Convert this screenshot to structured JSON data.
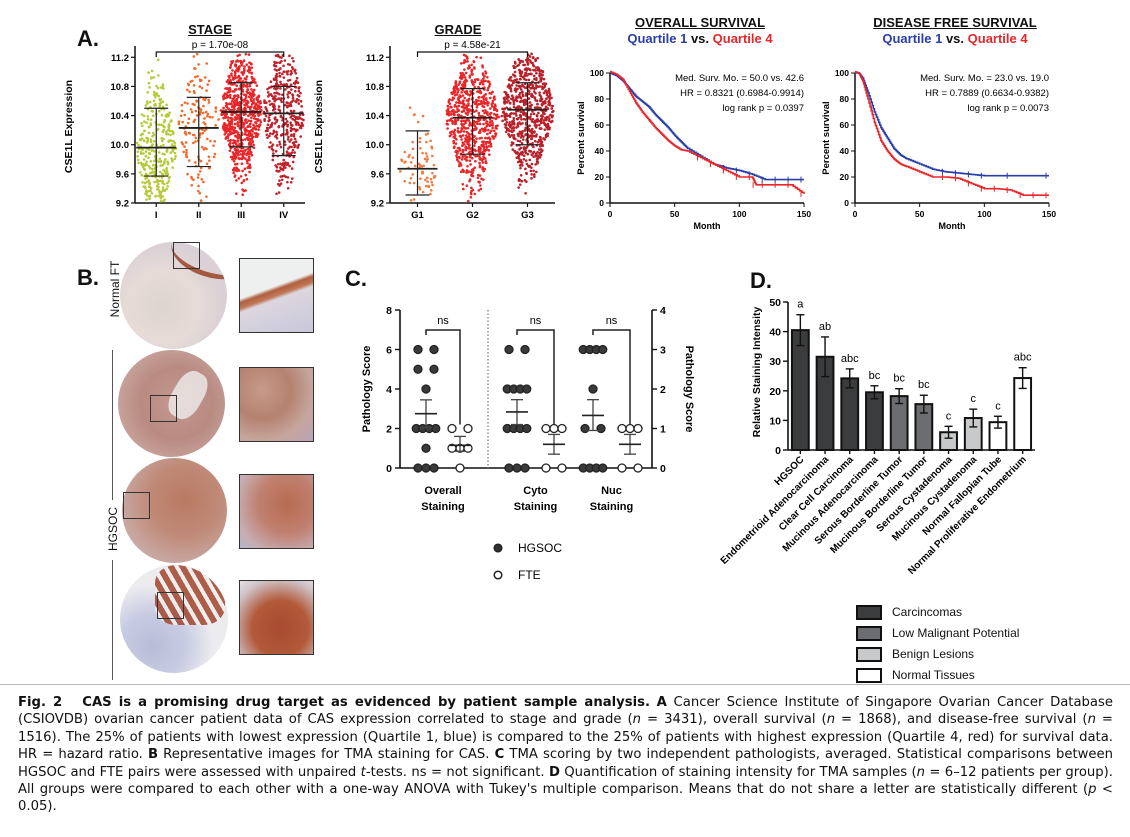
{
  "figure": {
    "panel_labels": {
      "a": "A.",
      "b": "B.",
      "c": "C.",
      "d": "D."
    },
    "caption": {
      "fig_label": "Fig. 2",
      "title": "CAS is a promising drug target as evidenced by patient sample analysis.",
      "part_a_label": "A",
      "part_a_text_1": "Cancer Science Institute of Singapore Ovarian Cancer Database (CSIOVDB) ovarian cancer patient data of CAS expression correlated to stage and grade (",
      "n1": "n",
      "part_a_text_2": " = 3431), overall survival (",
      "n2": "n",
      "part_a_text_3": " = 1868), and disease-free survival (",
      "n3": "n",
      "part_a_text_4": " = 1516). The 25% of patients with lowest expression (Quartile 1, blue) is compared to the 25% of patients with highest expression (Quartile 4, red) for survival data. HR = hazard ratio. ",
      "part_b_label": "B",
      "part_b_text": " Representative images for TMA staining for CAS. ",
      "part_c_label": "C",
      "part_c_text_1": " TMA scoring by two independent pathologists, averaged. Statistical comparisons between HGSOC and FTE pairs were assessed with unpaired ",
      "t": "t",
      "part_c_text_2": "-tests. ns = not significant. ",
      "part_d_label": "D",
      "part_d_text_1": " Quantification of staining intensity for TMA samples (",
      "n4": "n",
      "part_d_text_2": " = 6–12 patients per group). All groups were compared to each other with a one-way ANOVA with Tukey's multiple comparison. Means that do not share a letter are statistically different (",
      "p": "p",
      "part_d_text_3": " < 0.05)."
    },
    "panel_b": {
      "row_labels": [
        "Normal FT",
        "HGSOC"
      ]
    }
  },
  "chart_data": [
    {
      "id": "stage",
      "type": "scatter",
      "title": "STAGE",
      "ylabel": "CSE1L Expression",
      "xlabel": "",
      "categories": [
        "I",
        "II",
        "III",
        "IV"
      ],
      "ylim": [
        9.2,
        11.3
      ],
      "yticks": [
        "9.2",
        "9.6",
        "10.0",
        "10.4",
        "10.8",
        "11.2"
      ],
      "annotation": "p = 1.70e-08",
      "colors": [
        "#b8c93a",
        "#f06a2a",
        "#e8262a",
        "#c0202a"
      ],
      "series": [
        {
          "name": "I",
          "mean": 9.96,
          "sd_low": 9.57,
          "sd_high": 10.5,
          "n_approx": 350
        },
        {
          "name": "II",
          "mean": 10.23,
          "sd_low": 9.7,
          "sd_high": 10.65,
          "n_approx": 150
        },
        {
          "name": "III",
          "mean": 10.45,
          "sd_low": 9.97,
          "sd_high": 10.85,
          "n_approx": 2000
        },
        {
          "name": "IV",
          "mean": 10.43,
          "sd_low": 9.85,
          "sd_high": 10.8,
          "n_approx": 400
        }
      ]
    },
    {
      "id": "grade",
      "type": "scatter",
      "title": "GRADE",
      "ylabel": "CSE1L Expression",
      "xlabel": "",
      "categories": [
        "G1",
        "G2",
        "G3"
      ],
      "ylim": [
        9.2,
        11.3
      ],
      "yticks": [
        "9.2",
        "9.6",
        "10.0",
        "10.4",
        "10.8",
        "11.2"
      ],
      "annotation": "p = 4.58e-21",
      "colors": [
        "#f07a40",
        "#e8262a",
        "#b8202a"
      ],
      "series": [
        {
          "name": "G1",
          "mean": 9.67,
          "sd_low": 9.31,
          "sd_high": 10.19,
          "n_approx": 80
        },
        {
          "name": "G2",
          "mean": 10.37,
          "sd_low": 9.87,
          "sd_high": 10.77,
          "n_approx": 700
        },
        {
          "name": "G3",
          "mean": 10.48,
          "sd_low": 10.0,
          "sd_high": 10.85,
          "n_approx": 2000
        }
      ]
    },
    {
      "id": "overall-survival",
      "type": "line",
      "title": "OVERALL SURVIVAL",
      "subtitle": {
        "q1": "Quartile 1",
        "vs": " vs. ",
        "q4": "Quartile 4"
      },
      "xlabel": "Month",
      "ylabel": "Percent survival",
      "xlim": [
        0,
        150
      ],
      "ylim": [
        0,
        100
      ],
      "xticks": [
        "0",
        "50",
        "100",
        "150"
      ],
      "yticks": [
        "0",
        "20",
        "40",
        "60",
        "80",
        "100"
      ],
      "annotations": [
        "Med. Surv. Mo. = 50.0 vs. 42.6",
        "HR = 0.8321 (0.6984-0.9914)",
        "log rank p = 0.0397"
      ],
      "series": [
        {
          "name": "Quartile 1",
          "color": "#2a3ea8",
          "x": [
            0,
            5,
            10,
            15,
            20,
            25,
            30,
            35,
            40,
            45,
            50,
            55,
            60,
            70,
            80,
            90,
            100,
            110,
            120,
            130,
            140,
            150
          ],
          "y": [
            100,
            98,
            94,
            88,
            82,
            78,
            74,
            68,
            63,
            58,
            52,
            47,
            42,
            36,
            30,
            27,
            25,
            22,
            18,
            18,
            18,
            18
          ]
        },
        {
          "name": "Quartile 4",
          "color": "#e8262a",
          "x": [
            0,
            5,
            10,
            15,
            20,
            25,
            30,
            35,
            40,
            45,
            50,
            55,
            60,
            70,
            80,
            90,
            100,
            110,
            113,
            120,
            130,
            140,
            150
          ],
          "y": [
            101,
            99,
            95,
            86,
            77,
            70,
            64,
            58,
            53,
            48,
            44,
            41,
            40,
            35,
            30,
            25,
            20,
            20,
            14,
            14,
            14,
            14,
            7
          ]
        }
      ]
    },
    {
      "id": "disease-free-survival",
      "type": "line",
      "title": "DISEASE FREE SURVIVAL",
      "subtitle": {
        "q1": "Quartile 1",
        "vs": " vs. ",
        "q4": "Quartile 4"
      },
      "xlabel": "Month",
      "ylabel": "Percent survival",
      "xlim": [
        0,
        150
      ],
      "ylim": [
        0,
        100
      ],
      "xticks": [
        "0",
        "50",
        "100",
        "150"
      ],
      "yticks": [
        "0",
        "20",
        "40",
        "60",
        "80",
        "100"
      ],
      "annotations": [
        "Med. Surv. Mo. = 23.0 vs. 19.0",
        "HR = 0.7889 (0.6634-0.9382)",
        "log rank p = 0.0073"
      ],
      "series": [
        {
          "name": "Quartile 1",
          "color": "#2a3ea8",
          "x": [
            0,
            3,
            6,
            10,
            15,
            20,
            25,
            30,
            35,
            40,
            50,
            60,
            70,
            80,
            90,
            100,
            120,
            150
          ],
          "y": [
            100,
            100,
            96,
            85,
            70,
            58,
            50,
            42,
            37,
            34,
            30,
            26,
            24,
            23,
            22,
            21,
            21,
            21
          ]
        },
        {
          "name": "Quartile 4",
          "color": "#e8262a",
          "x": [
            0,
            3,
            6,
            10,
            15,
            20,
            25,
            30,
            35,
            40,
            50,
            60,
            70,
            80,
            90,
            100,
            110,
            120,
            130,
            140,
            150
          ],
          "y": [
            101,
            100,
            94,
            80,
            62,
            48,
            40,
            34,
            30,
            28,
            24,
            20,
            20,
            19,
            15,
            11,
            11,
            10,
            6,
            6,
            6
          ]
        }
      ]
    },
    {
      "id": "pathology-score",
      "type": "scatter",
      "title": "",
      "ylabel": "Pathology Score",
      "ylabel_right": "Pathology Score",
      "ylim": [
        0,
        8
      ],
      "ylim_right": [
        0,
        4
      ],
      "yticks": [
        "0",
        "2",
        "4",
        "6",
        "8"
      ],
      "yticks_right": [
        "0",
        "1",
        "2",
        "3",
        "4"
      ],
      "groups": [
        {
          "label_1": "Overall",
          "label_2": "Staining",
          "axis": "left",
          "sig": "ns",
          "hgsoc": [
            6,
            6,
            5,
            5,
            4,
            2,
            2,
            2,
            2,
            1,
            0,
            0,
            0
          ],
          "hgsoc_mean": 2.75,
          "hgsoc_sem": [
            2.05,
            3.45
          ],
          "fte": [
            2,
            2,
            1,
            1,
            1,
            0
          ],
          "fte_mean": 1.15,
          "fte_sem": [
            0.85,
            1.6
          ]
        },
        {
          "label_1": "Cyto",
          "label_2": "Staining",
          "axis": "right",
          "sig": "ns",
          "hgsoc": [
            3,
            3,
            2,
            2,
            2,
            2,
            1,
            1,
            1,
            1,
            0,
            0,
            0
          ],
          "hgsoc_mean": 1.42,
          "hgsoc_sem": [
            1.1,
            1.73
          ],
          "fte": [
            1,
            1,
            1,
            0,
            0
          ],
          "fte_mean": 0.6,
          "fte_sem": [
            0.35,
            0.85
          ]
        },
        {
          "label_1": "Nuc",
          "label_2": "Staining",
          "axis": "right",
          "sig": "ns",
          "hgsoc": [
            3,
            3,
            3,
            3,
            2,
            1,
            1,
            0,
            0,
            0,
            0
          ],
          "hgsoc_mean": 1.33,
          "hgsoc_sem": [
            0.95,
            1.73
          ],
          "fte": [
            1,
            1,
            1,
            0,
            0
          ],
          "fte_mean": 0.6,
          "fte_sem": [
            0.35,
            0.85
          ]
        }
      ],
      "legend": [
        {
          "name": "HGSOC",
          "marker": "filled"
        },
        {
          "name": "FTE",
          "marker": "open"
        }
      ]
    },
    {
      "id": "staining-intensity",
      "type": "bar",
      "title": "",
      "ylabel": "Relative Staining Intensity",
      "xlabel": "",
      "ylim": [
        0,
        50
      ],
      "yticks": [
        "0",
        "10",
        "20",
        "30",
        "40",
        "50"
      ],
      "categories": [
        "HGSOC",
        "Endometrioid Adenocarcinoma",
        "Clear Cell Carcinoma",
        "Mucinous Adenocarcinoma",
        "Serous Borderline Tumor",
        "Mucinous Borderline Tumor",
        "Serous Cystadenoma",
        "Mucinous Cystadenoma",
        "Normal Fallopian Tube",
        "Normal Proliferative Endometrium"
      ],
      "values": [
        40.5,
        31.5,
        24.2,
        19.5,
        18.2,
        15.5,
        6.0,
        10.8,
        9.4,
        24.3
      ],
      "errors": [
        5.2,
        6.7,
        3.2,
        2.2,
        2.5,
        3.0,
        2.0,
        3.0,
        2.0,
        3.5
      ],
      "letters": [
        "a",
        "ab",
        "abc",
        "bc",
        "bc",
        "bc",
        "c",
        "c",
        "c",
        "abc"
      ],
      "group_index": [
        0,
        0,
        0,
        0,
        1,
        1,
        2,
        2,
        3,
        3
      ],
      "legend": [
        {
          "name": "Carcincomas",
          "color": "#3a3c3e"
        },
        {
          "name": "Low Malignant Potential",
          "color": "#6b6d70"
        },
        {
          "name": "Benign Lesions",
          "color": "#c8c9cb"
        },
        {
          "name": "Normal Tissues",
          "color": "#ffffff"
        }
      ]
    }
  ]
}
